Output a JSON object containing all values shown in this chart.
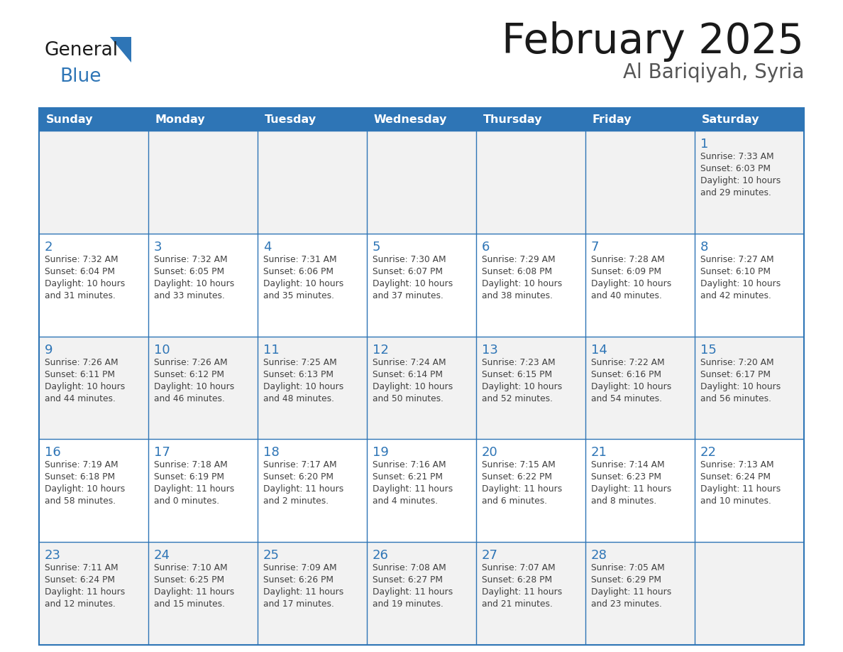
{
  "title": "February 2025",
  "subtitle": "Al Bariqiyah, Syria",
  "header_bg": "#2E75B6",
  "header_text_color": "#FFFFFF",
  "day_names": [
    "Sunday",
    "Monday",
    "Tuesday",
    "Wednesday",
    "Thursday",
    "Friday",
    "Saturday"
  ],
  "grid_line_color": "#2E75B6",
  "cell_bg": "#FFFFFF",
  "date_color": "#2E75B6",
  "info_color": "#404040",
  "logo_general_color": "#1a1a1a",
  "logo_blue_color": "#2E75B6",
  "outer_border_color": "#2E75B6",
  "calendar_data": [
    [
      null,
      null,
      null,
      null,
      null,
      null,
      {
        "day": "1",
        "sunrise": "Sunrise: 7:33 AM",
        "sunset": "Sunset: 6:03 PM",
        "daylight": "Daylight: 10 hours",
        "daylight2": "and 29 minutes."
      }
    ],
    [
      {
        "day": "2",
        "sunrise": "Sunrise: 7:32 AM",
        "sunset": "Sunset: 6:04 PM",
        "daylight": "Daylight: 10 hours",
        "daylight2": "and 31 minutes."
      },
      {
        "day": "3",
        "sunrise": "Sunrise: 7:32 AM",
        "sunset": "Sunset: 6:05 PM",
        "daylight": "Daylight: 10 hours",
        "daylight2": "and 33 minutes."
      },
      {
        "day": "4",
        "sunrise": "Sunrise: 7:31 AM",
        "sunset": "Sunset: 6:06 PM",
        "daylight": "Daylight: 10 hours",
        "daylight2": "and 35 minutes."
      },
      {
        "day": "5",
        "sunrise": "Sunrise: 7:30 AM",
        "sunset": "Sunset: 6:07 PM",
        "daylight": "Daylight: 10 hours",
        "daylight2": "and 37 minutes."
      },
      {
        "day": "6",
        "sunrise": "Sunrise: 7:29 AM",
        "sunset": "Sunset: 6:08 PM",
        "daylight": "Daylight: 10 hours",
        "daylight2": "and 38 minutes."
      },
      {
        "day": "7",
        "sunrise": "Sunrise: 7:28 AM",
        "sunset": "Sunset: 6:09 PM",
        "daylight": "Daylight: 10 hours",
        "daylight2": "and 40 minutes."
      },
      {
        "day": "8",
        "sunrise": "Sunrise: 7:27 AM",
        "sunset": "Sunset: 6:10 PM",
        "daylight": "Daylight: 10 hours",
        "daylight2": "and 42 minutes."
      }
    ],
    [
      {
        "day": "9",
        "sunrise": "Sunrise: 7:26 AM",
        "sunset": "Sunset: 6:11 PM",
        "daylight": "Daylight: 10 hours",
        "daylight2": "and 44 minutes."
      },
      {
        "day": "10",
        "sunrise": "Sunrise: 7:26 AM",
        "sunset": "Sunset: 6:12 PM",
        "daylight": "Daylight: 10 hours",
        "daylight2": "and 46 minutes."
      },
      {
        "day": "11",
        "sunrise": "Sunrise: 7:25 AM",
        "sunset": "Sunset: 6:13 PM",
        "daylight": "Daylight: 10 hours",
        "daylight2": "and 48 minutes."
      },
      {
        "day": "12",
        "sunrise": "Sunrise: 7:24 AM",
        "sunset": "Sunset: 6:14 PM",
        "daylight": "Daylight: 10 hours",
        "daylight2": "and 50 minutes."
      },
      {
        "day": "13",
        "sunrise": "Sunrise: 7:23 AM",
        "sunset": "Sunset: 6:15 PM",
        "daylight": "Daylight: 10 hours",
        "daylight2": "and 52 minutes."
      },
      {
        "day": "14",
        "sunrise": "Sunrise: 7:22 AM",
        "sunset": "Sunset: 6:16 PM",
        "daylight": "Daylight: 10 hours",
        "daylight2": "and 54 minutes."
      },
      {
        "day": "15",
        "sunrise": "Sunrise: 7:20 AM",
        "sunset": "Sunset: 6:17 PM",
        "daylight": "Daylight: 10 hours",
        "daylight2": "and 56 minutes."
      }
    ],
    [
      {
        "day": "16",
        "sunrise": "Sunrise: 7:19 AM",
        "sunset": "Sunset: 6:18 PM",
        "daylight": "Daylight: 10 hours",
        "daylight2": "and 58 minutes."
      },
      {
        "day": "17",
        "sunrise": "Sunrise: 7:18 AM",
        "sunset": "Sunset: 6:19 PM",
        "daylight": "Daylight: 11 hours",
        "daylight2": "and 0 minutes."
      },
      {
        "day": "18",
        "sunrise": "Sunrise: 7:17 AM",
        "sunset": "Sunset: 6:20 PM",
        "daylight": "Daylight: 11 hours",
        "daylight2": "and 2 minutes."
      },
      {
        "day": "19",
        "sunrise": "Sunrise: 7:16 AM",
        "sunset": "Sunset: 6:21 PM",
        "daylight": "Daylight: 11 hours",
        "daylight2": "and 4 minutes."
      },
      {
        "day": "20",
        "sunrise": "Sunrise: 7:15 AM",
        "sunset": "Sunset: 6:22 PM",
        "daylight": "Daylight: 11 hours",
        "daylight2": "and 6 minutes."
      },
      {
        "day": "21",
        "sunrise": "Sunrise: 7:14 AM",
        "sunset": "Sunset: 6:23 PM",
        "daylight": "Daylight: 11 hours",
        "daylight2": "and 8 minutes."
      },
      {
        "day": "22",
        "sunrise": "Sunrise: 7:13 AM",
        "sunset": "Sunset: 6:24 PM",
        "daylight": "Daylight: 11 hours",
        "daylight2": "and 10 minutes."
      }
    ],
    [
      {
        "day": "23",
        "sunrise": "Sunrise: 7:11 AM",
        "sunset": "Sunset: 6:24 PM",
        "daylight": "Daylight: 11 hours",
        "daylight2": "and 12 minutes."
      },
      {
        "day": "24",
        "sunrise": "Sunrise: 7:10 AM",
        "sunset": "Sunset: 6:25 PM",
        "daylight": "Daylight: 11 hours",
        "daylight2": "and 15 minutes."
      },
      {
        "day": "25",
        "sunrise": "Sunrise: 7:09 AM",
        "sunset": "Sunset: 6:26 PM",
        "daylight": "Daylight: 11 hours",
        "daylight2": "and 17 minutes."
      },
      {
        "day": "26",
        "sunrise": "Sunrise: 7:08 AM",
        "sunset": "Sunset: 6:27 PM",
        "daylight": "Daylight: 11 hours",
        "daylight2": "and 19 minutes."
      },
      {
        "day": "27",
        "sunrise": "Sunrise: 7:07 AM",
        "sunset": "Sunset: 6:28 PM",
        "daylight": "Daylight: 11 hours",
        "daylight2": "and 21 minutes."
      },
      {
        "day": "28",
        "sunrise": "Sunrise: 7:05 AM",
        "sunset": "Sunset: 6:29 PM",
        "daylight": "Daylight: 11 hours",
        "daylight2": "and 23 minutes."
      },
      null
    ]
  ]
}
